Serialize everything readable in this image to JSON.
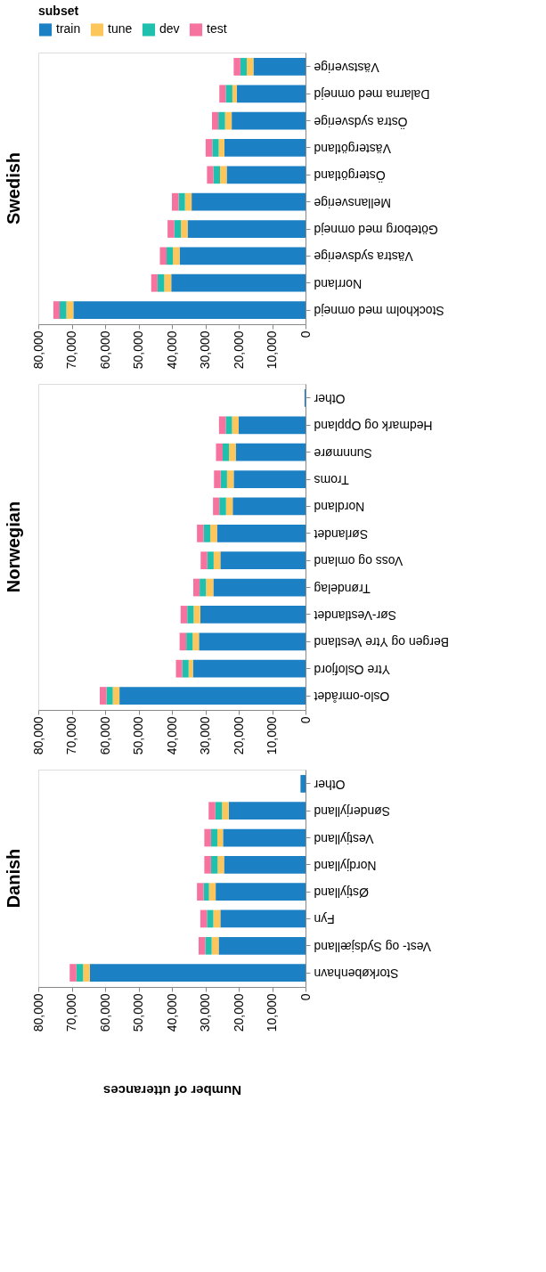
{
  "chart_data": [
    {
      "type": "bar",
      "orientation": "horizontal",
      "stacked": true,
      "title": "Swedish",
      "legend": "top left",
      "legend_title": "subset",
      "grid": false,
      "xlim": [
        80000,
        0
      ],
      "xticks": [
        {
          "value": 0,
          "label": "0"
        },
        {
          "value": 10000,
          "label": "10,000"
        },
        {
          "value": 20000,
          "label": "20,000"
        },
        {
          "value": 30000,
          "label": "30,000"
        },
        {
          "value": 40000,
          "label": "40,000"
        },
        {
          "value": 50000,
          "label": "50,000"
        },
        {
          "value": 60000,
          "label": "60,000"
        },
        {
          "value": 70000,
          "label": "70,000"
        },
        {
          "value": 80000,
          "label": "80,000"
        }
      ],
      "categories": [
        "Västsverige",
        "Dalarna med omnejd",
        "Östra sydsverige",
        "Västergötland",
        "Östergötland",
        "Mellansverige",
        "Göteborg med omnejd",
        "Västra sydsverige",
        "Norrland",
        "Stockholm med omnejd"
      ],
      "series": [
        {
          "name": "train",
          "color": "#1b80c4",
          "values": [
            15600,
            20600,
            22100,
            24300,
            23600,
            34100,
            35300,
            37700,
            40200,
            69500
          ]
        },
        {
          "name": "tune",
          "color": "#fcc65a",
          "values": [
            2000,
            1300,
            2000,
            1700,
            2000,
            2000,
            2000,
            2000,
            2100,
            2100
          ]
        },
        {
          "name": "dev",
          "color": "#1fc0ad",
          "values": [
            1900,
            2000,
            2000,
            1900,
            2000,
            1900,
            2000,
            1900,
            2000,
            2000
          ]
        },
        {
          "name": "test",
          "color": "#f6739f",
          "values": [
            2000,
            1900,
            1900,
            2000,
            1900,
            2000,
            2000,
            2000,
            1900,
            1900
          ]
        }
      ]
    },
    {
      "type": "bar",
      "orientation": "horizontal",
      "stacked": true,
      "title": "Norwegian",
      "grid": false,
      "xlim": [
        80000,
        0
      ],
      "xticks": [
        {
          "value": 0,
          "label": "0"
        },
        {
          "value": 10000,
          "label": "10,000"
        },
        {
          "value": 20000,
          "label": "20,000"
        },
        {
          "value": 30000,
          "label": "30,000"
        },
        {
          "value": 40000,
          "label": "40,000"
        },
        {
          "value": 50000,
          "label": "50,000"
        },
        {
          "value": 60000,
          "label": "60,000"
        },
        {
          "value": 70000,
          "label": "70,000"
        },
        {
          "value": 80000,
          "label": "80,000"
        }
      ],
      "categories": [
        "Other",
        "Hedmark og Oppland",
        "Sunnmøre",
        "Troms",
        "Nordland",
        "Sørlandet",
        "Voss og omland",
        "Trøndelag",
        "Sør-Vestlandet",
        "Bergen og Ytre Vestland",
        "Ytre Oslofjord",
        "Oslo-området"
      ],
      "series": [
        {
          "color": "#1b80c4",
          "values": [
            300,
            20000,
            20900,
            21500,
            21800,
            26500,
            25500,
            27600,
            31500,
            31900,
            33700,
            55700
          ]
        },
        {
          "color": "#fcc65a",
          "values": [
            0,
            2000,
            2000,
            2000,
            2000,
            2000,
            2000,
            2200,
            2000,
            1900,
            1300,
            2000
          ]
        },
        {
          "color": "#1fc0ad",
          "values": [
            0,
            1900,
            1900,
            1900,
            2000,
            2000,
            1900,
            1900,
            1900,
            1900,
            1900,
            1900
          ]
        },
        {
          "color": "#f6739f",
          "values": [
            0,
            2000,
            2000,
            2000,
            1900,
            2000,
            2000,
            1900,
            2000,
            2000,
            1900,
            2000
          ]
        }
      ]
    },
    {
      "type": "bar",
      "orientation": "horizontal",
      "stacked": true,
      "title": "Danish",
      "xlabel": "Number of utterances",
      "grid": false,
      "xlim": [
        80000,
        0
      ],
      "xticks": [
        {
          "value": 0,
          "label": "0"
        },
        {
          "value": 10000,
          "label": "10,000"
        },
        {
          "value": 20000,
          "label": "20,000"
        },
        {
          "value": 30000,
          "label": "30,000"
        },
        {
          "value": 40000,
          "label": "40,000"
        },
        {
          "value": 50000,
          "label": "50,000"
        },
        {
          "value": 60000,
          "label": "60,000"
        },
        {
          "value": 70000,
          "label": "70,000"
        },
        {
          "value": 80000,
          "label": "80,000"
        }
      ],
      "categories": [
        "Other",
        "Sønderjylland",
        "Vestjylland",
        "Nordjylland",
        "Østjylland",
        "Fyn",
        "Vest- og Sydsjælland",
        "Storkøbenhavn"
      ],
      "series": [
        {
          "color": "#1b80c4",
          "values": [
            1500,
            23000,
            24700,
            24400,
            26900,
            25500,
            26000,
            64600
          ]
        },
        {
          "color": "#fcc65a",
          "values": [
            0,
            2000,
            1700,
            1900,
            2000,
            2100,
            2100,
            2000
          ]
        },
        {
          "color": "#1fc0ad",
          "values": [
            0,
            2000,
            1900,
            2000,
            1600,
            1900,
            1900,
            2000
          ]
        },
        {
          "color": "#f6739f",
          "values": [
            0,
            2000,
            2000,
            2000,
            2000,
            2000,
            2000,
            2000
          ]
        }
      ]
    }
  ]
}
